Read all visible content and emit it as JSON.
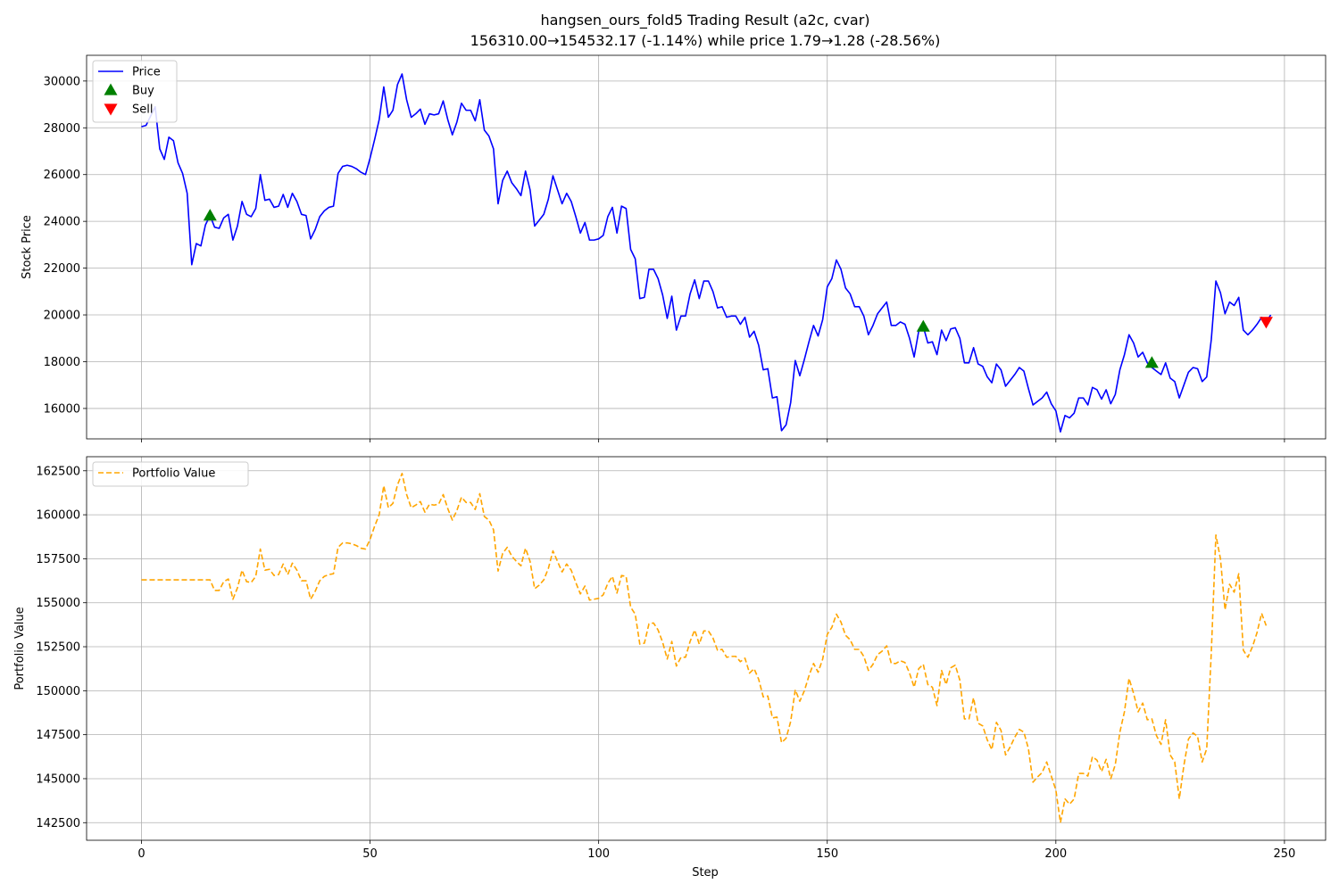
{
  "chart_data": {
    "title": "hangsen_ours_fold5 Trading Result (a2c, cvar)",
    "subtitle": "156310.00→154532.17 (-1.14%) while price 1.79→1.28 (-28.56%)",
    "xlabel": "Step",
    "x_ticks": [
      0,
      50,
      100,
      150,
      200,
      250
    ],
    "xlim": [
      -12,
      259
    ],
    "grid": true,
    "panels": [
      {
        "type": "line",
        "ylabel": "Stock Price",
        "ylim": [
          14700,
          31100
        ],
        "y_ticks": [
          16000,
          18000,
          20000,
          22000,
          24000,
          26000,
          28000,
          30000
        ],
        "legend_position": "top-left",
        "series": [
          {
            "name": "Price",
            "style": "solid",
            "color": "#0000ff",
            "values": [
              28050,
              28100,
              28500,
              28900,
              27100,
              26650,
              27600,
              27450,
              26500,
              26050,
              25200,
              22150,
              23050,
              22950,
              23850,
              24250,
              23750,
              23700,
              24150,
              24300,
              23200,
              23800,
              24850,
              24300,
              24200,
              24550,
              26000,
              24900,
              24950,
              24600,
              24650,
              25150,
              24600,
              25200,
              24850,
              24300,
              24250,
              23250,
              23650,
              24200,
              24450,
              24600,
              24650,
              26050,
              26350,
              26400,
              26350,
              26250,
              26100,
              26000,
              26700,
              27500,
              28350,
              29750,
              28450,
              28750,
              29850,
              30300,
              29200,
              28450,
              28600,
              28800,
              28150,
              28600,
              28550,
              28600,
              29150,
              28350,
              27700,
              28250,
              29050,
              28750,
              28750,
              28300,
              29200,
              27900,
              27650,
              27100,
              24750,
              25750,
              26150,
              25650,
              25400,
              25100,
              26150,
              25350,
              23800,
              24050,
              24300,
              24950,
              25950,
              25350,
              24750,
              25200,
              24850,
              24200,
              23500,
              23950,
              23200,
              23200,
              23250,
              23400,
              24200,
              24600,
              23500,
              24650,
              24550,
              22800,
              22400,
              20700,
              20750,
              21950,
              21950,
              21550,
              20850,
              19850,
              20800,
              19350,
              19950,
              19950,
              20900,
              21500,
              20700,
              21450,
              21450,
              21000,
              20300,
              20350,
              19900,
              19950,
              19950,
              19600,
              19900,
              19050,
              19300,
              18700,
              17650,
              17700,
              16450,
              16500,
              15050,
              15300,
              16250,
              18050,
              17400,
              18100,
              18850,
              19550,
              19100,
              19800,
              21200,
              21550,
              22350,
              21950,
              21150,
              20900,
              20350,
              20350,
              19950,
              19150,
              19550,
              20050,
              20300,
              20550,
              19550,
              19550,
              19700,
              19600,
              19000,
              18200,
              19300,
              19500,
              18800,
              18850,
              18300,
              19350,
              18900,
              19400,
              19450,
              19000,
              17950,
              17950,
              18600,
              17900,
              17800,
              17350,
              17100,
              17900,
              17650,
              16950,
              17200,
              17450,
              17750,
              17600,
              16850,
              16150,
              16300,
              16450,
              16700,
              16200,
              15900,
              15000,
              15700,
              15600,
              15800,
              16450,
              16450,
              16150,
              16900,
              16800,
              16400,
              16800,
              16200,
              16600,
              17650,
              18300,
              19150,
              18800,
              18200,
              18400,
              17950,
              17750,
              17600,
              17450,
              17950,
              17300,
              17150,
              16450,
              17000,
              17550,
              17750,
              17700,
              17150,
              17350,
              18950,
              21450,
              20950,
              20050,
              20550,
              20400,
              20750,
              19350,
              19150,
              19350,
              19600,
              19900,
              19700,
              20000
            ]
          }
        ],
        "markers": [
          {
            "name": "Buy",
            "shape": "triangle-up",
            "color": "#008000",
            "points": [
              {
                "x": 15,
                "y": 24250
              },
              {
                "x": 171,
                "y": 19500
              },
              {
                "x": 221,
                "y": 17950
              }
            ]
          },
          {
            "name": "Sell",
            "shape": "triangle-down",
            "color": "#ff0000",
            "points": [
              {
                "x": 246,
                "y": 19700
              }
            ]
          }
        ]
      },
      {
        "type": "line",
        "ylabel": "Portfolio Value",
        "ylim": [
          141500,
          163300
        ],
        "y_ticks": [
          142500,
          145000,
          147500,
          150000,
          152500,
          155000,
          157500,
          160000,
          162500
        ],
        "legend_position": "top-left",
        "series": [
          {
            "name": "Portfolio Value",
            "style": "dashed",
            "color": "#ffa500",
            "values": [
              156300,
              156300,
              156300,
              156300,
              156300,
              156300,
              156300,
              156300,
              156300,
              156300,
              156300,
              156300,
              156300,
              156300,
              156300,
              156300,
              155700,
              155700,
              156200,
              156350,
              155200,
              155850,
              156850,
              156200,
              156150,
              156500,
              158050,
              156850,
              156900,
              156550,
              156600,
              157200,
              156600,
              157250,
              156850,
              156250,
              156250,
              155200,
              155650,
              156250,
              156500,
              156600,
              156650,
              158150,
              158400,
              158400,
              158350,
              158250,
              158100,
              158050,
              158600,
              159350,
              160000,
              161650,
              160400,
              160650,
              161700,
              162350,
              161150,
              160400,
              160550,
              160750,
              160150,
              160600,
              160550,
              160600,
              161150,
              160350,
              159700,
              160250,
              161000,
              160700,
              160700,
              160300,
              161200,
              159900,
              159700,
              159150,
              156800,
              157800,
              158150,
              157650,
              157350,
              157100,
              158100,
              157350,
              155800,
              156000,
              156300,
              156950,
              157950,
              157350,
              156750,
              157200,
              156850,
              156150,
              155500,
              155950,
              155150,
              155200,
              155250,
              155450,
              156100,
              156500,
              155550,
              156550,
              156500,
              154750,
              154350,
              152650,
              152700,
              153800,
              153850,
              153450,
              152750,
              151800,
              152800,
              151400,
              151900,
              151900,
              152800,
              153450,
              152650,
              153400,
              153400,
              153000,
              152300,
              152350,
              151900,
              151950,
              151950,
              151650,
              151850,
              151000,
              151250,
              150650,
              149650,
              149700,
              148450,
              148500,
              147050,
              147300,
              148250,
              150050,
              149400,
              150000,
              150850,
              151550,
              151050,
              151800,
              153200,
              153600,
              154350,
              153900,
              153150,
              152900,
              152350,
              152350,
              151950,
              151150,
              151500,
              152050,
              152250,
              152550,
              151550,
              151550,
              151700,
              151600,
              151000,
              150200,
              151250,
              151500,
              150350,
              150200,
              149150,
              151150,
              150350,
              151300,
              151450,
              150600,
              148400,
              148400,
              149600,
              148150,
              148000,
              147200,
              146650,
              148200,
              147750,
              146350,
              146800,
              147350,
              147800,
              147650,
              146700,
              144800,
              145100,
              145350,
              145950,
              145150,
              144350,
              142500,
              143850,
              143550,
              143850,
              145300,
              145300,
              145150,
              146250,
              146050,
              145400,
              146100,
              145000,
              145800,
              147650,
              148800,
              150700,
              149850,
              148800,
              149300,
              148350,
              148400,
              147450,
              146950,
              148350,
              146350,
              145950,
              143850,
              145750,
              147250,
              147600,
              147400,
              145950,
              146700,
              152200,
              158850,
              157500,
              154600,
              156050,
              155600,
              156650,
              152300,
              151900,
              152500,
              153300,
              154400,
              153700
            ]
          }
        ],
        "markers": []
      }
    ]
  }
}
